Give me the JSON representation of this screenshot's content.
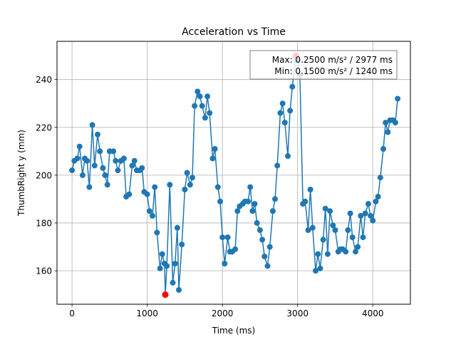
{
  "chart_data": {
    "type": "line",
    "title": "Acceleration vs Time",
    "xlabel": "Time (ms)",
    "ylabel": "ThumbRight y (mm)",
    "xlim": [
      -200,
      4500
    ],
    "ylim": [
      146,
      256
    ],
    "xticks": [
      0,
      1000,
      2000,
      3000,
      4000
    ],
    "xtick_labels": [
      "0",
      "1000",
      "2000",
      "3000",
      "4000"
    ],
    "yticks": [
      160,
      180,
      200,
      220,
      240
    ],
    "ytick_labels": [
      "160",
      "180",
      "200",
      "220",
      "240"
    ],
    "grid": true,
    "series": [
      {
        "color": "#1f77b4",
        "marker": "circle",
        "points": [
          [
            0,
            202
          ],
          [
            30,
            206
          ],
          [
            70,
            207
          ],
          [
            100,
            212
          ],
          [
            140,
            200
          ],
          [
            170,
            207
          ],
          [
            200,
            206
          ],
          [
            230,
            195
          ],
          [
            270,
            221
          ],
          [
            300,
            204
          ],
          [
            340,
            217
          ],
          [
            370,
            210
          ],
          [
            410,
            203
          ],
          [
            440,
            200
          ],
          [
            470,
            196
          ],
          [
            500,
            210
          ],
          [
            550,
            210
          ],
          [
            580,
            206
          ],
          [
            610,
            202
          ],
          [
            650,
            206
          ],
          [
            690,
            207
          ],
          [
            720,
            191
          ],
          [
            760,
            192
          ],
          [
            800,
            204
          ],
          [
            830,
            206
          ],
          [
            860,
            202
          ],
          [
            900,
            202
          ],
          [
            930,
            203
          ],
          [
            960,
            193
          ],
          [
            1000,
            192
          ],
          [
            1030,
            185
          ],
          [
            1070,
            183
          ],
          [
            1100,
            195
          ],
          [
            1130,
            176
          ],
          [
            1170,
            161
          ],
          [
            1200,
            167
          ],
          [
            1230,
            163
          ],
          [
            1240,
            150
          ],
          [
            1260,
            162
          ],
          [
            1300,
            196
          ],
          [
            1340,
            155
          ],
          [
            1370,
            163
          ],
          [
            1400,
            178
          ],
          [
            1420,
            152
          ],
          [
            1460,
            171
          ],
          [
            1500,
            194
          ],
          [
            1530,
            201
          ],
          [
            1570,
            196
          ],
          [
            1600,
            199
          ],
          [
            1630,
            229
          ],
          [
            1670,
            235
          ],
          [
            1700,
            233
          ],
          [
            1730,
            229
          ],
          [
            1770,
            224
          ],
          [
            1800,
            233
          ],
          [
            1830,
            226
          ],
          [
            1870,
            207
          ],
          [
            1900,
            211
          ],
          [
            1940,
            195
          ],
          [
            1970,
            189
          ],
          [
            2000,
            174
          ],
          [
            2030,
            163
          ],
          [
            2070,
            174
          ],
          [
            2100,
            168
          ],
          [
            2130,
            168
          ],
          [
            2170,
            169
          ],
          [
            2200,
            185
          ],
          [
            2230,
            187
          ],
          [
            2270,
            188
          ],
          [
            2300,
            189
          ],
          [
            2340,
            189
          ],
          [
            2370,
            195
          ],
          [
            2400,
            185
          ],
          [
            2430,
            188
          ],
          [
            2460,
            180
          ],
          [
            2500,
            177
          ],
          [
            2530,
            173
          ],
          [
            2560,
            166
          ],
          [
            2600,
            162
          ],
          [
            2630,
            170
          ],
          [
            2670,
            185
          ],
          [
            2700,
            190
          ],
          [
            2730,
            204
          ],
          [
            2770,
            226
          ],
          [
            2800,
            230
          ],
          [
            2830,
            222
          ],
          [
            2870,
            208
          ],
          [
            2900,
            227
          ],
          [
            2930,
            237
          ],
          [
            2977,
            250
          ],
          [
            3000,
            248
          ],
          [
            3030,
            242
          ],
          [
            3070,
            188
          ],
          [
            3100,
            189
          ],
          [
            3140,
            177
          ],
          [
            3170,
            194
          ],
          [
            3200,
            178
          ],
          [
            3240,
            160
          ],
          [
            3270,
            167
          ],
          [
            3300,
            161
          ],
          [
            3340,
            173
          ],
          [
            3370,
            186
          ],
          [
            3400,
            167
          ],
          [
            3430,
            185
          ],
          [
            3470,
            179
          ],
          [
            3500,
            177
          ],
          [
            3540,
            168
          ],
          [
            3570,
            169
          ],
          [
            3600,
            169
          ],
          [
            3640,
            168
          ],
          [
            3670,
            177
          ],
          [
            3700,
            184
          ],
          [
            3730,
            174
          ],
          [
            3770,
            168
          ],
          [
            3800,
            170
          ],
          [
            3840,
            183
          ],
          [
            3870,
            174
          ],
          [
            3900,
            184
          ],
          [
            3940,
            188
          ],
          [
            3970,
            183
          ],
          [
            4000,
            181
          ],
          [
            4040,
            189
          ],
          [
            4070,
            191
          ],
          [
            4100,
            199
          ],
          [
            4140,
            211
          ],
          [
            4170,
            222
          ],
          [
            4200,
            218
          ],
          [
            4230,
            223
          ],
          [
            4270,
            223
          ],
          [
            4300,
            222
          ],
          [
            4330,
            232
          ]
        ]
      }
    ],
    "highlights": [
      {
        "label": "max",
        "x": 2977,
        "y": 250,
        "color": "#ff0000"
      },
      {
        "label": "min",
        "x": 1240,
        "y": 150,
        "color": "#ff0000"
      }
    ],
    "annotation": {
      "line1": "Max: 0.2500 m/s² / 2977 ms",
      "line2": "Min: 0.1500 m/s² / 1240 ms",
      "placement": "top-right"
    }
  }
}
